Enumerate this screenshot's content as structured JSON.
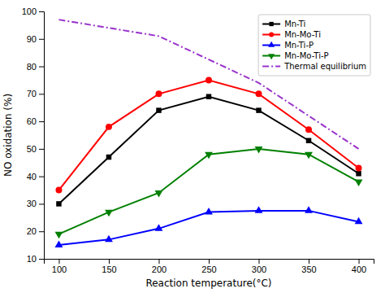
{
  "chart_data": {
    "type": "line",
    "x_label": "Reaction temperature(°C)",
    "y_label": "NO oxidation (%)",
    "x": [
      100,
      150,
      200,
      250,
      300,
      350,
      400
    ],
    "series": [
      {
        "name": "Mn-Ti",
        "color": "#000000",
        "marker": "square",
        "line_style": "solid",
        "values": [
          30,
          47,
          64,
          69,
          64,
          53,
          41
        ]
      },
      {
        "name": "Mn-Mo-Ti",
        "color": "#ff0000",
        "marker": "circle",
        "line_style": "solid",
        "values": [
          35,
          58,
          70,
          75,
          70,
          57,
          43
        ]
      },
      {
        "name": "Mn-Ti-P",
        "color": "#0000ff",
        "marker": "triangle-up",
        "line_style": "solid",
        "values": [
          15,
          17,
          21,
          27,
          27.5,
          27.5,
          23.5
        ]
      },
      {
        "name": "Mn-Mo-Ti-P",
        "color": "#008000",
        "marker": "triangle-down",
        "line_style": "solid",
        "values": [
          19,
          27,
          34,
          48,
          50,
          48,
          38
        ]
      },
      {
        "name": "Thermal equilibrium",
        "color": "#9933cc",
        "marker": "none",
        "line_style": "dash-dot",
        "x": [
          100,
          200,
          300,
          400
        ],
        "values": [
          97,
          91,
          74,
          50
        ]
      }
    ],
    "xlim": [
      85,
      415
    ],
    "ylim": [
      10,
      100
    ],
    "xticks": [
      100,
      150,
      200,
      250,
      300,
      350,
      400
    ],
    "yticks": [
      10,
      20,
      30,
      40,
      50,
      60,
      70,
      80,
      90,
      100
    ],
    "grid": false,
    "legend": "upper right"
  }
}
